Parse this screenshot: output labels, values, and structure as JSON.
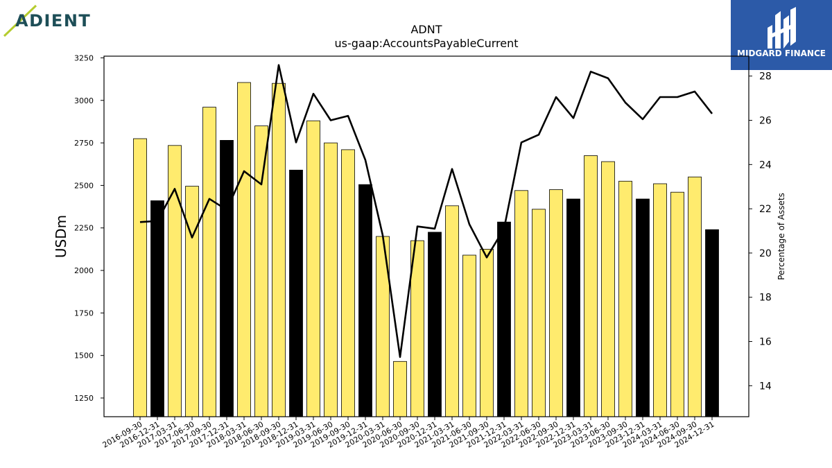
{
  "logos": {
    "company": "ADIENT",
    "company_accent": "#b5cc2e",
    "company_color": "#1d4e57",
    "publisher": "MIDGARD FINANCE",
    "publisher_bg": "#2c5aa8"
  },
  "colors": {
    "bar_regular": "#ffeb6e",
    "bar_year_end": "#000000",
    "line": "#000000"
  },
  "chart_data": {
    "type": "bar",
    "title": "ADNT",
    "subtitle": "us-gaap:AccountsPayableCurrent",
    "ylabel": "USDm",
    "y2label": "Percentage of Assets",
    "ylim": [
      1140,
      3260
    ],
    "y2lim": [
      12.6,
      28.9
    ],
    "yticks": [
      1250,
      1500,
      1750,
      2000,
      2250,
      2500,
      2750,
      3000,
      3250
    ],
    "y2ticks": [
      14,
      16,
      18,
      20,
      22,
      24,
      26,
      28
    ],
    "categories": [
      "2016-09-30",
      "2016-12-31",
      "2017-03-31",
      "2017-06-30",
      "2017-09-30",
      "2017-12-31",
      "2018-03-31",
      "2018-06-30",
      "2018-09-30",
      "2018-12-31",
      "2019-03-31",
      "2019-06-30",
      "2019-09-30",
      "2019-12-31",
      "2020-03-31",
      "2020-06-30",
      "2020-09-30",
      "2020-12-31",
      "2021-03-31",
      "2021-06-30",
      "2021-09-30",
      "2021-12-31",
      "2022-03-31",
      "2022-06-30",
      "2022-09-30",
      "2022-12-31",
      "2023-03-31",
      "2023-06-30",
      "2023-09-30",
      "2023-12-31",
      "2024-03-31",
      "2024-06-30",
      "2024-09-30",
      "2024-12-31"
    ],
    "series": [
      {
        "type": "bar",
        "values": [
          2775,
          2410,
          2735,
          2495,
          2960,
          2765,
          3105,
          2850,
          3100,
          2590,
          2880,
          2750,
          2710,
          2505,
          2200,
          1465,
          2175,
          2225,
          2380,
          2090,
          2125,
          2285,
          2470,
          2360,
          2475,
          2420,
          2675,
          2640,
          2525,
          2420,
          2510,
          2460,
          2550,
          2240
        ],
        "year_end": [
          false,
          true,
          false,
          false,
          false,
          true,
          false,
          false,
          false,
          true,
          false,
          false,
          false,
          true,
          false,
          false,
          false,
          true,
          false,
          false,
          false,
          true,
          false,
          false,
          false,
          true,
          false,
          false,
          false,
          true,
          false,
          false,
          false,
          true
        ]
      },
      {
        "type": "line",
        "axis": "right",
        "values": [
          21.4,
          21.45,
          22.9,
          20.7,
          22.45,
          21.95,
          23.7,
          23.1,
          28.5,
          25.0,
          27.2,
          26.0,
          26.2,
          24.2,
          20.8,
          15.3,
          21.2,
          21.1,
          23.8,
          21.3,
          19.8,
          21.1,
          25.0,
          25.35,
          27.05,
          26.1,
          28.2,
          27.9,
          26.8,
          26.05,
          27.05,
          27.05,
          27.3,
          26.3
        ]
      }
    ]
  }
}
